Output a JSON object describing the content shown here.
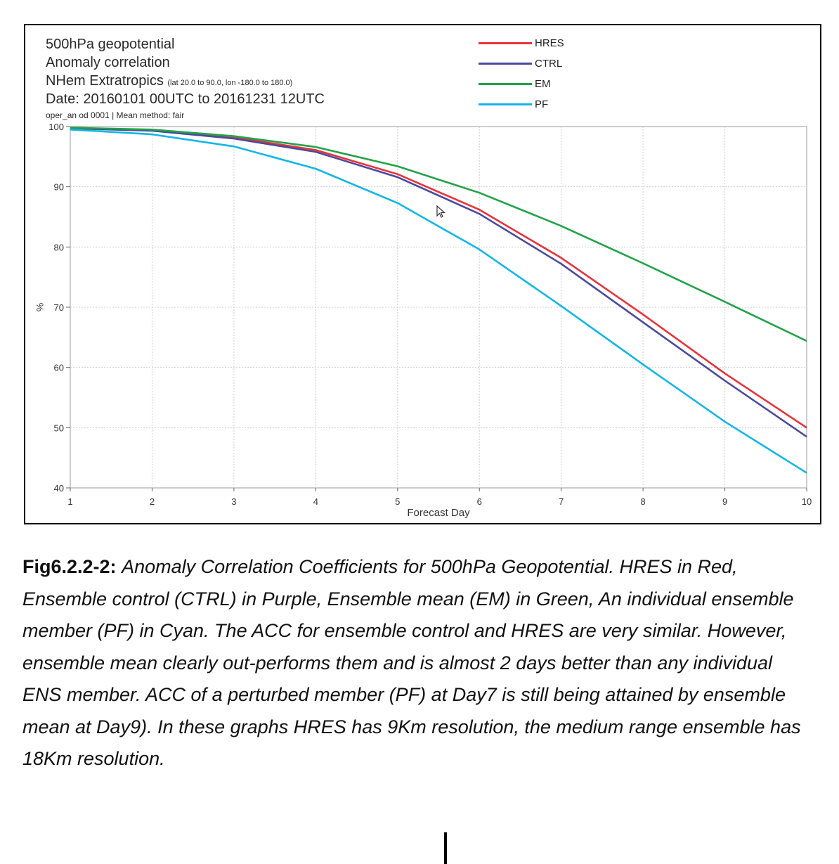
{
  "header": {
    "title": "500hPa geopotential",
    "subtitle": "Anomaly correlation",
    "region": "NHem Extratropics",
    "region_extent": "(lat  20.0 to 90.0, lon  -180.0 to  180.0)",
    "date_range": "Date: 20160101 00UTC to 20161231 12UTC",
    "meta": "oper_an od 0001 | Mean method: fair"
  },
  "chart_data": {
    "type": "line",
    "xlabel": "Forecast Day",
    "ylabel": "%",
    "x": [
      1,
      2,
      3,
      4,
      5,
      6,
      7,
      8,
      9,
      10
    ],
    "xlim": [
      1,
      10
    ],
    "ylim": [
      40,
      100
    ],
    "xticks": [
      "1",
      "2",
      "3",
      "4",
      "5",
      "6",
      "7",
      "8",
      "9",
      "10"
    ],
    "yticks": [
      "40",
      "50",
      "60",
      "70",
      "80",
      "90",
      "100"
    ],
    "grid": true,
    "legend_position": "top-right",
    "series": [
      {
        "name": "HRES",
        "color": "#e8333a",
        "values": [
          99.8,
          99.4,
          98.2,
          96.1,
          92.1,
          86.2,
          78.2,
          68.8,
          59.0,
          50.0
        ]
      },
      {
        "name": "CTRL",
        "color": "#4a4a9c",
        "values": [
          99.7,
          99.3,
          98.0,
          95.8,
          91.6,
          85.5,
          77.2,
          67.5,
          57.8,
          48.5
        ]
      },
      {
        "name": "EM",
        "color": "#22a24a",
        "values": [
          99.8,
          99.5,
          98.4,
          96.6,
          93.4,
          89.0,
          83.5,
          77.3,
          70.9,
          64.4
        ]
      },
      {
        "name": "PF",
        "color": "#13b6ea",
        "values": [
          99.5,
          98.7,
          96.7,
          93.0,
          87.3,
          79.6,
          70.2,
          60.5,
          51.0,
          42.5
        ]
      }
    ]
  },
  "caption": {
    "label": "Fig6.2.2-2:",
    "text": "Anomaly Correlation Coefficients for 500hPa Geopotential.  HRES in Red, Ensemble control (CTRL) in Purple, Ensemble mean (EM) in Green, An individual ensemble member (PF) in Cyan.  The ACC for ensemble control and HRES are very similar.  However, ensemble mean clearly out-performs them and is almost 2 days better than any individual ENS member.  ACC of a perturbed member (PF) at Day7 is still being attained by ensemble mean at Day9).  In these graphs HRES has 9Km resolution, the medium range ensemble has 18Km resolution."
  }
}
